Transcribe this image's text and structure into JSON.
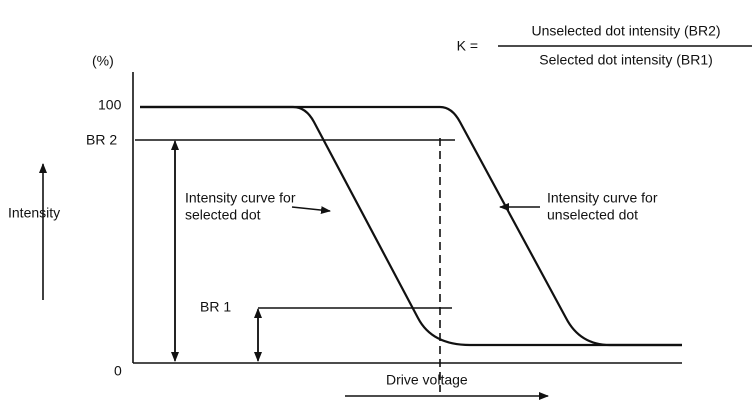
{
  "formula": {
    "lhs": "K =",
    "numerator": "Unselected dot intensity (BR2)",
    "denominator": "Selected dot intensity (BR1)"
  },
  "axis": {
    "unit": "(%)",
    "top": "100",
    "bottom": "0",
    "y_label": "Intensity",
    "x_label": "Drive voltage"
  },
  "levels": {
    "br2": "BR 2",
    "br1": "BR 1"
  },
  "callouts": [
    {
      "lines": [
        "Intensity curve for",
        "selected dot"
      ]
    },
    {
      "lines": [
        "Intensity curve for",
        "unselected dot"
      ]
    }
  ]
}
